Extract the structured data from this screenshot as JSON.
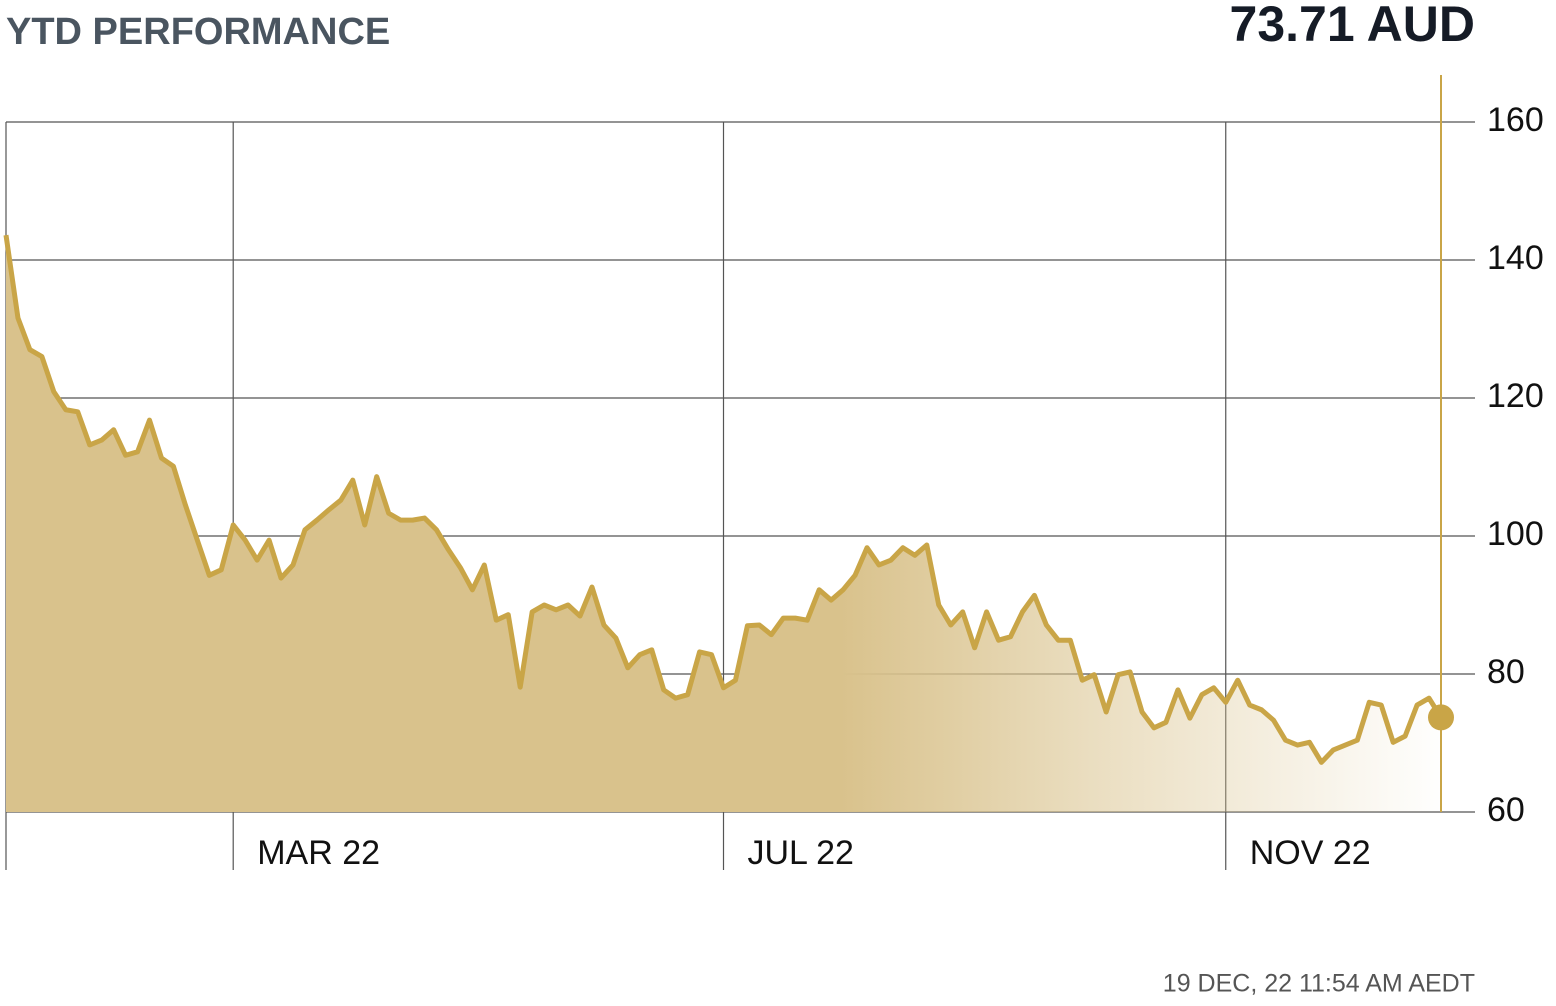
{
  "chart_data": {
    "type": "area",
    "title": "YTD PERFORMANCE",
    "current_price": "73.71 AUD",
    "timestamp": "19 DEC, 22 11:54 AM AEDT",
    "color": "#c9a547",
    "fill_color": "#d9c28c",
    "categories": [
      null,
      null,
      null,
      null,
      null,
      null,
      null,
      null,
      null,
      null,
      null,
      null,
      null,
      null,
      null,
      null,
      null,
      null,
      null,
      "MAR 22",
      null,
      null,
      null,
      null,
      null,
      null,
      null,
      null,
      null,
      null,
      null,
      null,
      null,
      null,
      null,
      null,
      null,
      null,
      null,
      null,
      null,
      null,
      null,
      null,
      null,
      null,
      null,
      null,
      null,
      null,
      null,
      null,
      null,
      null,
      null,
      null,
      null,
      null,
      null,
      null,
      "JUL 22",
      null,
      null,
      null,
      null,
      null,
      null,
      null,
      null,
      null,
      null,
      null,
      null,
      null,
      null,
      null,
      null,
      null,
      null,
      null,
      null,
      null,
      null,
      null,
      null,
      null,
      null,
      null,
      null,
      null,
      null,
      null,
      null,
      null,
      null,
      null,
      null,
      null,
      null,
      null,
      null,
      null,
      "NOV 22",
      null,
      null,
      null,
      null,
      null,
      null,
      null,
      null,
      null,
      null,
      null,
      null,
      null,
      null,
      null,
      null,
      null,
      null
    ],
    "values": [
      143.6,
      131.6,
      127,
      126,
      120.9,
      118.3,
      118,
      113.2,
      113.9,
      115.4,
      111.7,
      112.2,
      116.8,
      111.3,
      110.1,
      104.5,
      99.4,
      94.3,
      95.1,
      101.6,
      99.4,
      96.5,
      99.4,
      93.9,
      95.8,
      100.9,
      102.3,
      103.8,
      105.2,
      108.1,
      101.6,
      108.6,
      103.3,
      102.3,
      102.3,
      102.6,
      100.9,
      98,
      95.4,
      92.2,
      95.8,
      87.8,
      88.6,
      78.1,
      89,
      90,
      89.3,
      90,
      88.4,
      92.6,
      87.1,
      85.2,
      80.9,
      82.8,
      83.5,
      77.7,
      76.5,
      77,
      83.2,
      82.8,
      78,
      79.1,
      87,
      87.1,
      85.7,
      88.1,
      88.1,
      87.8,
      92.2,
      90.7,
      92.2,
      94.3,
      98.3,
      95.8,
      96.5,
      98.3,
      97.2,
      98.7,
      90,
      87.1,
      89,
      83.8,
      89,
      84.9,
      85.4,
      89,
      91.4,
      87.1,
      84.9,
      84.9,
      79.1,
      79.9,
      74.5,
      79.9,
      80.3,
      74.5,
      72.2,
      73,
      77.7,
      73.6,
      77,
      78,
      75.9,
      79.1,
      75.5,
      74.8,
      73.3,
      70.4,
      69.7,
      70.1,
      67.2,
      69,
      69.7,
      70.4,
      75.9,
      75.5,
      70.1,
      71,
      75.5,
      76.5,
      73.71
    ],
    "ylim": [
      60,
      160
    ],
    "yticks": [
      60,
      80,
      100,
      120,
      140,
      160
    ],
    "grid": true
  }
}
